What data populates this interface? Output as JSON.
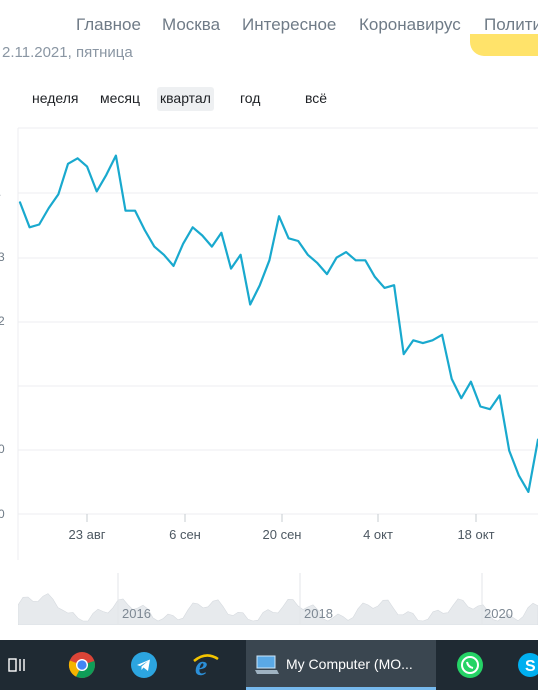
{
  "nav": {
    "items": [
      "Главное",
      "Москва",
      "Интересное",
      "Коронавирус",
      "Полити"
    ]
  },
  "date_line": "2.11.2021, пятница",
  "periods": {
    "items": [
      "неделя",
      "месяц",
      "квартал",
      "год",
      "всё"
    ],
    "active": "квартал"
  },
  "chart_data": {
    "type": "line",
    "x_tick_labels": [
      "23 авг",
      "6 сен",
      "20 сен",
      "4 окт",
      "18 окт"
    ],
    "y_axis_labels_visible": [
      ".",
      "3",
      "2",
      "",
      "0",
      "0"
    ],
    "series": [
      {
        "color": "#19a9ce",
        "values": [
          11.3,
          10.4,
          10.5,
          11.1,
          11.6,
          12.7,
          12.9,
          12.6,
          11.7,
          12.3,
          13.0,
          11.0,
          11.0,
          10.3,
          9.7,
          9.4,
          9.0,
          9.8,
          10.4,
          10.1,
          9.7,
          10.2,
          8.9,
          9.4,
          7.6,
          8.3,
          9.2,
          10.8,
          10.0,
          9.9,
          9.4,
          9.1,
          8.7,
          9.3,
          9.5,
          9.2,
          9.2,
          8.6,
          8.2,
          8.3,
          5.8,
          6.3,
          6.2,
          6.3,
          6.5,
          4.9,
          4.2,
          4.8,
          3.9,
          3.8,
          4.3,
          2.3,
          1.4,
          0.8,
          2.7
        ]
      }
    ],
    "grid": true,
    "line_color": "#19a9ce"
  },
  "minimap": {
    "year_labels": [
      "2016",
      "2018",
      "2020"
    ]
  },
  "taskbar": {
    "active_window_label": "My Computer (MO...",
    "icons": [
      "task-view-icon",
      "chrome-icon",
      "telegram-icon",
      "edge-icon",
      "my-computer-icon",
      "whatsapp-icon",
      "skype-icon"
    ],
    "colors": {
      "bar": "#1f2a33",
      "active": "#3a4650",
      "accent": "#76b9ed"
    }
  }
}
